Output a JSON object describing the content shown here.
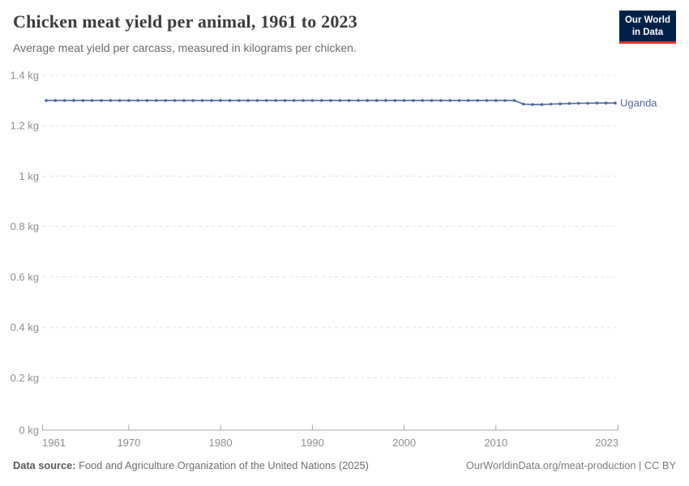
{
  "header": {
    "title": "Chicken meat yield per animal, 1961 to 2023",
    "subtitle": "Average meat yield per carcass, measured in kilograms per chicken."
  },
  "logo": {
    "line1": "Our World",
    "line2": "in Data",
    "background": "#002147",
    "accent": "#e0322b"
  },
  "chart_data": {
    "type": "line",
    "title": "Chicken meat yield per animal, 1961 to 2023",
    "subtitle": "Average meat yield per carcass, measured in kilograms per chicken.",
    "entity": "Uganda",
    "xlabel": "",
    "ylabel": "",
    "ylim": [
      0,
      1.4
    ],
    "grid": "dashed-horizontal",
    "legend_position": "end-of-line-label",
    "x": [
      1961,
      1962,
      1963,
      1964,
      1965,
      1966,
      1967,
      1968,
      1969,
      1970,
      1971,
      1972,
      1973,
      1974,
      1975,
      1976,
      1977,
      1978,
      1979,
      1980,
      1981,
      1982,
      1983,
      1984,
      1985,
      1986,
      1987,
      1988,
      1989,
      1990,
      1991,
      1992,
      1993,
      1994,
      1995,
      1996,
      1997,
      1998,
      1999,
      2000,
      2001,
      2002,
      2003,
      2004,
      2005,
      2006,
      2007,
      2008,
      2009,
      2010,
      2011,
      2012,
      2013,
      2014,
      2015,
      2016,
      2017,
      2018,
      2019,
      2020,
      2021,
      2022,
      2023
    ],
    "values": [
      1.3,
      1.3,
      1.3,
      1.3,
      1.3,
      1.3,
      1.3,
      1.3,
      1.3,
      1.3,
      1.3,
      1.3,
      1.3,
      1.3,
      1.3,
      1.3,
      1.3,
      1.3,
      1.3,
      1.3,
      1.3,
      1.3,
      1.3,
      1.3,
      1.3,
      1.3,
      1.3,
      1.3,
      1.3,
      1.3,
      1.3,
      1.3,
      1.3,
      1.3,
      1.3,
      1.3,
      1.3,
      1.3,
      1.3,
      1.3,
      1.3,
      1.3,
      1.3,
      1.3,
      1.3,
      1.3,
      1.3,
      1.3,
      1.3,
      1.3,
      1.3,
      1.3,
      1.286,
      1.284,
      1.284,
      1.286,
      1.287,
      1.288,
      1.289,
      1.289,
      1.29,
      1.29,
      1.29
    ],
    "yticks": [
      {
        "value": 0,
        "label": "0 kg"
      },
      {
        "value": 0.2,
        "label": "0.2 kg"
      },
      {
        "value": 0.4,
        "label": "0.4 kg"
      },
      {
        "value": 0.6,
        "label": "0.6 kg"
      },
      {
        "value": 0.8,
        "label": "0.8 kg"
      },
      {
        "value": 1,
        "label": "1 kg"
      },
      {
        "value": 1.2,
        "label": "1.2 kg"
      },
      {
        "value": 1.4,
        "label": "1.4 kg"
      }
    ],
    "xticks": [
      1961,
      1970,
      1980,
      1990,
      2000,
      2010,
      2023
    ],
    "colors": {
      "line": "#4c6a9c",
      "grid": "#e0e0e0",
      "axis": "#a5a5a5",
      "tick_label": "#8f8f8f"
    }
  },
  "footer": {
    "datasource_label": "Data source:",
    "datasource_text": "Food and Agriculture Organization of the United Nations (2025)",
    "credit": "OurWorldinData.org/meat-production | CC BY"
  }
}
